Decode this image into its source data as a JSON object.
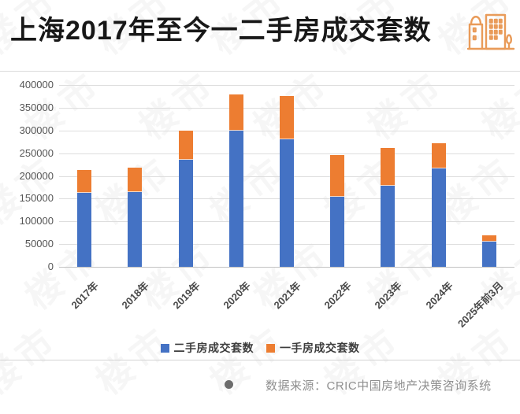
{
  "header": {
    "title": "上海2017年至今一二手房成交套数"
  },
  "chart_data": {
    "type": "bar",
    "stacked": true,
    "title": "上海2017年至今一二手房成交套数",
    "categories": [
      "2017年",
      "2018年",
      "2019年",
      "2020年",
      "2021年",
      "2022年",
      "2023年",
      "2024年",
      "2025年前3月"
    ],
    "series": [
      {
        "name": "二手房成交套数",
        "color": "#4472C4",
        "values": [
          162000,
          164000,
          235000,
          300000,
          281000,
          155000,
          178000,
          216000,
          55000
        ]
      },
      {
        "name": "一手房成交套数",
        "color": "#ED7D31",
        "values": [
          50000,
          53000,
          63000,
          78000,
          93000,
          90000,
          81000,
          55000,
          13000
        ]
      }
    ],
    "xlabel": "",
    "ylabel": "",
    "ylim": [
      0,
      400000
    ],
    "ytick_step": 50000,
    "yticks": [
      "0",
      "50000",
      "100000",
      "150000",
      "200000",
      "250000",
      "300000",
      "350000",
      "400000"
    ],
    "grid": true,
    "legend_position": "bottom"
  },
  "footer": {
    "source": "数据来源：CRIC中国房地产决策咨询系统"
  },
  "watermark": "楼市",
  "colors": {
    "bar_blue": "#4472C4",
    "bar_orange": "#ED7D31",
    "icon_orange": "#E99B59",
    "divider": "#dcdcdc",
    "footer_text": "#8f8f8f",
    "title_text": "#181818"
  }
}
